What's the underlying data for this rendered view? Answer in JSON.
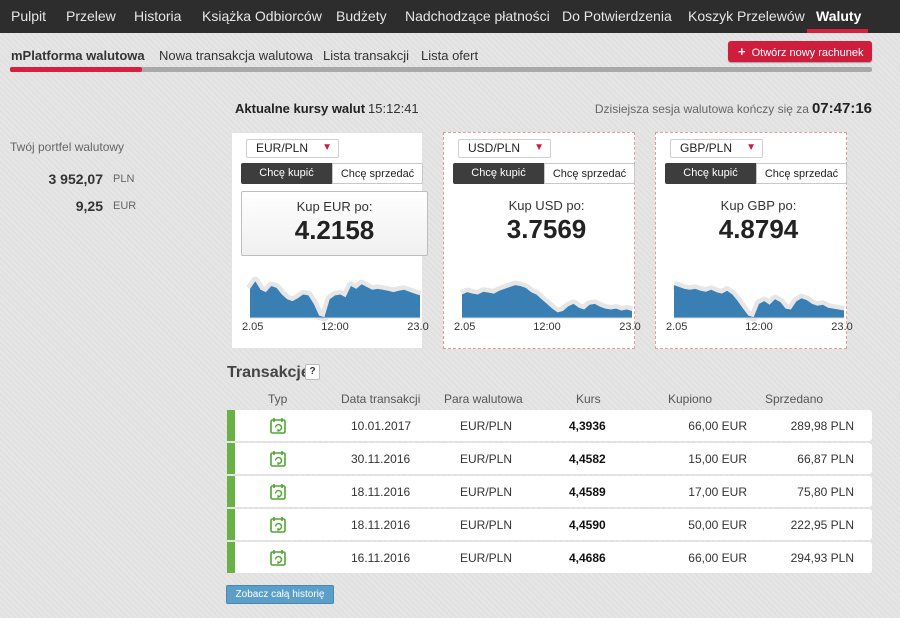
{
  "topnav": {
    "items": [
      "Pulpit",
      "Przelew",
      "Historia",
      "Książka Odbiorców",
      "Budżety",
      "Nadchodzące płatności",
      "Do Potwierdzenia",
      "Koszyk Przelewów",
      "Waluty"
    ],
    "active": "Waluty"
  },
  "subnav": {
    "items": [
      "mPlatforma walutowa",
      "Nowa transakcja walutowa",
      "Lista transakcji",
      "Lista ofert"
    ],
    "active": "mPlatforma walutowa",
    "new_account_label": "Otwórz nowy rachunek"
  },
  "portfolio": {
    "title": "Twój portfel walutowy",
    "balances": [
      {
        "amount": "3 952,07",
        "currency": "PLN"
      },
      {
        "amount": "9,25",
        "currency": "EUR"
      }
    ]
  },
  "rates": {
    "title": "Aktualne kursy walut",
    "time": "15:12:41",
    "session_label": "Dzisiejsza sesja walutowa kończy się za",
    "session_time": "07:47:16"
  },
  "cards": [
    {
      "pair": "EUR/PLN",
      "buy_label": "Chcę kupić",
      "sell_label": "Chcę sprzedać",
      "quote_label": "Kup EUR po:",
      "quote_value": "4.2158",
      "axis": [
        "2.05",
        "12:00",
        "23.0"
      ],
      "trend": [
        0.62,
        0.78,
        0.6,
        0.55,
        0.68,
        0.64,
        0.5,
        0.4,
        0.36,
        0.42,
        0.5,
        0.48,
        0.3,
        0.05,
        0.02,
        0.4,
        0.48,
        0.5,
        0.44,
        0.68,
        0.62,
        0.72,
        0.66,
        0.6,
        0.62,
        0.6,
        0.58,
        0.55,
        0.58,
        0.6,
        0.56,
        0.52,
        0.48
      ]
    },
    {
      "pair": "USD/PLN",
      "buy_label": "Chcę kupić",
      "sell_label": "Chcę sprzedać",
      "quote_label": "Kup USD po:",
      "quote_value": "3.7569",
      "axis": [
        "2.05",
        "12:00",
        "23.0"
      ],
      "trend": [
        0.5,
        0.55,
        0.52,
        0.5,
        0.56,
        0.54,
        0.52,
        0.58,
        0.62,
        0.66,
        0.7,
        0.68,
        0.64,
        0.55,
        0.5,
        0.4,
        0.3,
        0.2,
        0.12,
        0.15,
        0.25,
        0.3,
        0.22,
        0.18,
        0.28,
        0.3,
        0.24,
        0.2,
        0.18,
        0.2,
        0.16,
        0.18,
        0.15
      ]
    },
    {
      "pair": "GBP/PLN",
      "buy_label": "Chcę kupić",
      "sell_label": "Chcę sprzedać",
      "quote_label": "Kup GBP po:",
      "quote_value": "4.8794",
      "axis": [
        "2.05",
        "12:00",
        "23.0"
      ],
      "trend": [
        0.7,
        0.66,
        0.62,
        0.6,
        0.62,
        0.58,
        0.56,
        0.6,
        0.55,
        0.52,
        0.58,
        0.5,
        0.36,
        0.2,
        0.05,
        0.02,
        0.3,
        0.36,
        0.28,
        0.4,
        0.34,
        0.2,
        0.18,
        0.35,
        0.42,
        0.38,
        0.3,
        0.26,
        0.28,
        0.22,
        0.2,
        0.18,
        0.16
      ]
    }
  ],
  "transactions": {
    "title": "Transakcje",
    "help": "?",
    "headers": [
      "Typ",
      "Data transakcji",
      "Para walutowa",
      "Kurs",
      "Kupiono",
      "Sprzedano"
    ],
    "rows": [
      {
        "date": "10.01.2017",
        "pair": "EUR/PLN",
        "rate": "4,3936",
        "bought": "66,00 EUR",
        "sold": "289,98 PLN"
      },
      {
        "date": "30.11.2016",
        "pair": "EUR/PLN",
        "rate": "4,4582",
        "bought": "15,00 EUR",
        "sold": "66,87 PLN"
      },
      {
        "date": "18.11.2016",
        "pair": "EUR/PLN",
        "rate": "4,4589",
        "bought": "17,00 EUR",
        "sold": "75,80 PLN"
      },
      {
        "date": "18.11.2016",
        "pair": "EUR/PLN",
        "rate": "4,4590",
        "bought": "50,00 EUR",
        "sold": "222,95 PLN"
      },
      {
        "date": "16.11.2016",
        "pair": "EUR/PLN",
        "rate": "4,4686",
        "bought": "66,00 EUR",
        "sold": "294,93 PLN"
      }
    ],
    "history_button": "Zobacz całą historię"
  },
  "colors": {
    "accent": "#d5213f",
    "nav_bg": "#2d2d2d",
    "chart_fill": "#3a7fb3",
    "status_bar": "#69b046",
    "history_button": "#5a9ec9"
  }
}
